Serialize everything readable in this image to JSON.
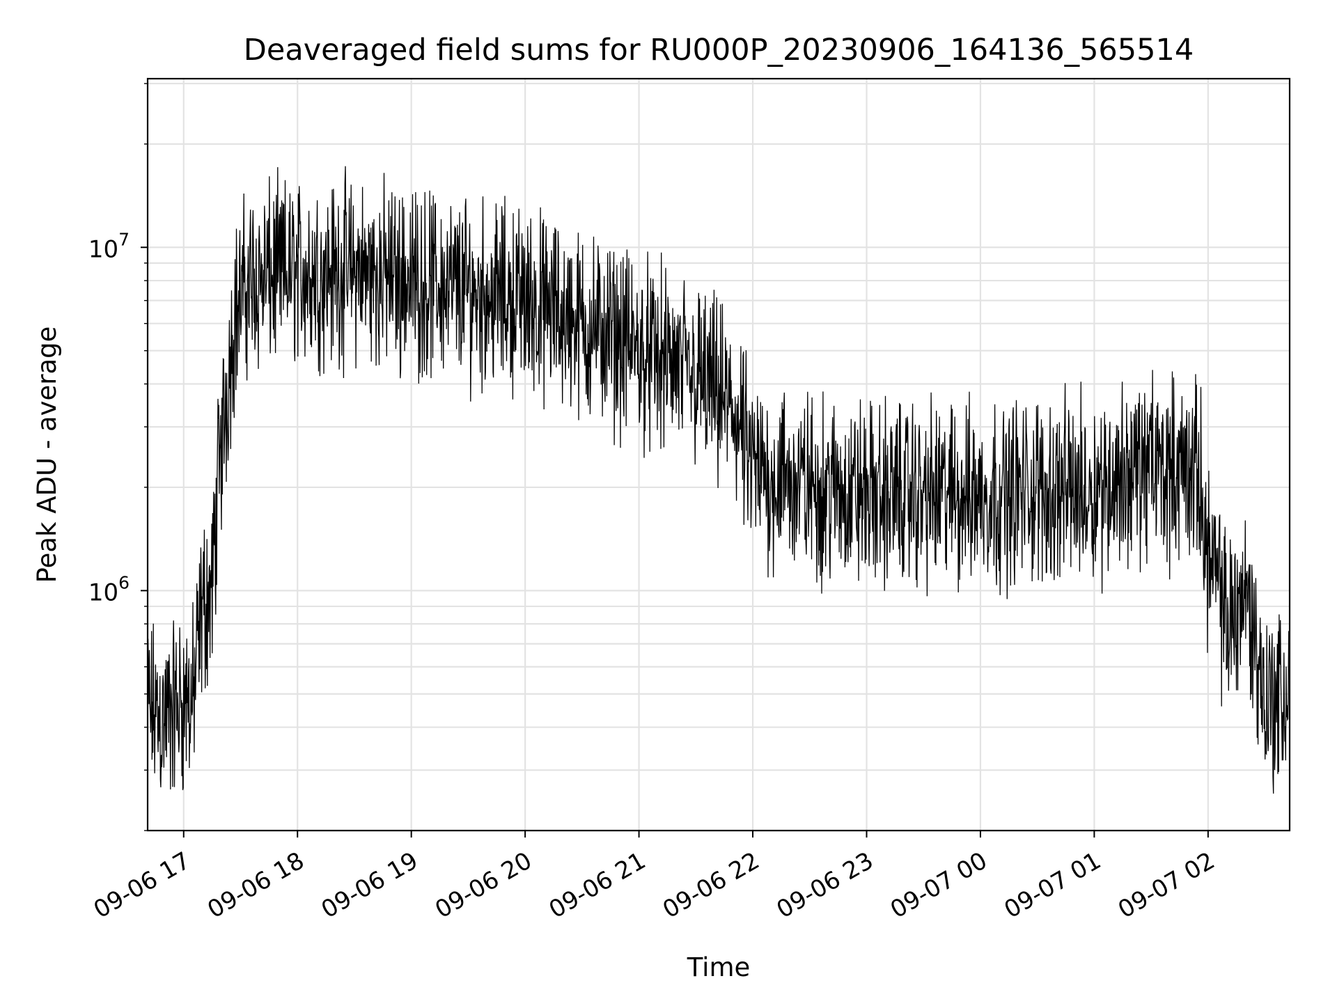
{
  "chart_data": {
    "type": "line",
    "title": "Deaveraged field sums for RU000P_20230906_164136_565514",
    "xlabel": "Time",
    "ylabel": "Peak ADU - average",
    "yscale": "log",
    "ylim": [
      200000,
      31000000
    ],
    "xlim": [
      "2023-09-06 16:41",
      "2023-09-07 02:43"
    ],
    "grid": true,
    "x_tick_labels": [
      "09-06 17",
      "09-06 18",
      "09-06 19",
      "09-06 20",
      "09-06 21",
      "09-06 22",
      "09-06 23",
      "09-07 00",
      "09-07 01",
      "09-07 02"
    ],
    "y_tick_labels": [
      {
        "base": "10",
        "exponent": "6",
        "value": 1000000
      },
      {
        "base": "10",
        "exponent": "7",
        "value": 10000000
      }
    ],
    "series": [
      {
        "color": "#000000",
        "points": [
          {
            "t": "2023-09-06 16:41",
            "v": 450000
          },
          {
            "t": "2023-09-06 16:50",
            "v": 420000
          },
          {
            "t": "2023-09-06 16:58",
            "v": 470000
          },
          {
            "t": "2023-09-06 17:05",
            "v": 480000
          },
          {
            "t": "2023-09-06 17:10",
            "v": 900000
          },
          {
            "t": "2023-09-06 17:15",
            "v": 1000000
          },
          {
            "t": "2023-09-06 17:18",
            "v": 2000000
          },
          {
            "t": "2023-09-06 17:22",
            "v": 3500000
          },
          {
            "t": "2023-09-06 17:27",
            "v": 6500000
          },
          {
            "t": "2023-09-06 17:35",
            "v": 8000000
          },
          {
            "t": "2023-09-06 18:00",
            "v": 8500000
          },
          {
            "t": "2023-09-06 18:30",
            "v": 8500000
          },
          {
            "t": "2023-09-06 19:00",
            "v": 8000000
          },
          {
            "t": "2023-09-06 19:30",
            "v": 7500000
          },
          {
            "t": "2023-09-06 20:00",
            "v": 7000000
          },
          {
            "t": "2023-09-06 20:30",
            "v": 6000000
          },
          {
            "t": "2023-09-06 21:00",
            "v": 5000000
          },
          {
            "t": "2023-09-06 21:30",
            "v": 4200000
          },
          {
            "t": "2023-09-06 21:50",
            "v": 3300000
          },
          {
            "t": "2023-09-06 22:00",
            "v": 2200000
          },
          {
            "t": "2023-09-06 22:30",
            "v": 2000000
          },
          {
            "t": "2023-09-06 23:00",
            "v": 1900000
          },
          {
            "t": "2023-09-06 23:30",
            "v": 1900000
          },
          {
            "t": "2023-09-07 00:00",
            "v": 1900000
          },
          {
            "t": "2023-09-07 00:30",
            "v": 1950000
          },
          {
            "t": "2023-09-07 01:00",
            "v": 2000000
          },
          {
            "t": "2023-09-07 01:30",
            "v": 2300000
          },
          {
            "t": "2023-09-07 01:55",
            "v": 2200000
          },
          {
            "t": "2023-09-07 02:00",
            "v": 1300000
          },
          {
            "t": "2023-09-07 02:10",
            "v": 800000
          },
          {
            "t": "2023-09-07 02:20",
            "v": 1000000
          },
          {
            "t": "2023-09-07 02:30",
            "v": 480000
          },
          {
            "t": "2023-09-07 02:43",
            "v": 480000
          }
        ]
      }
    ]
  }
}
